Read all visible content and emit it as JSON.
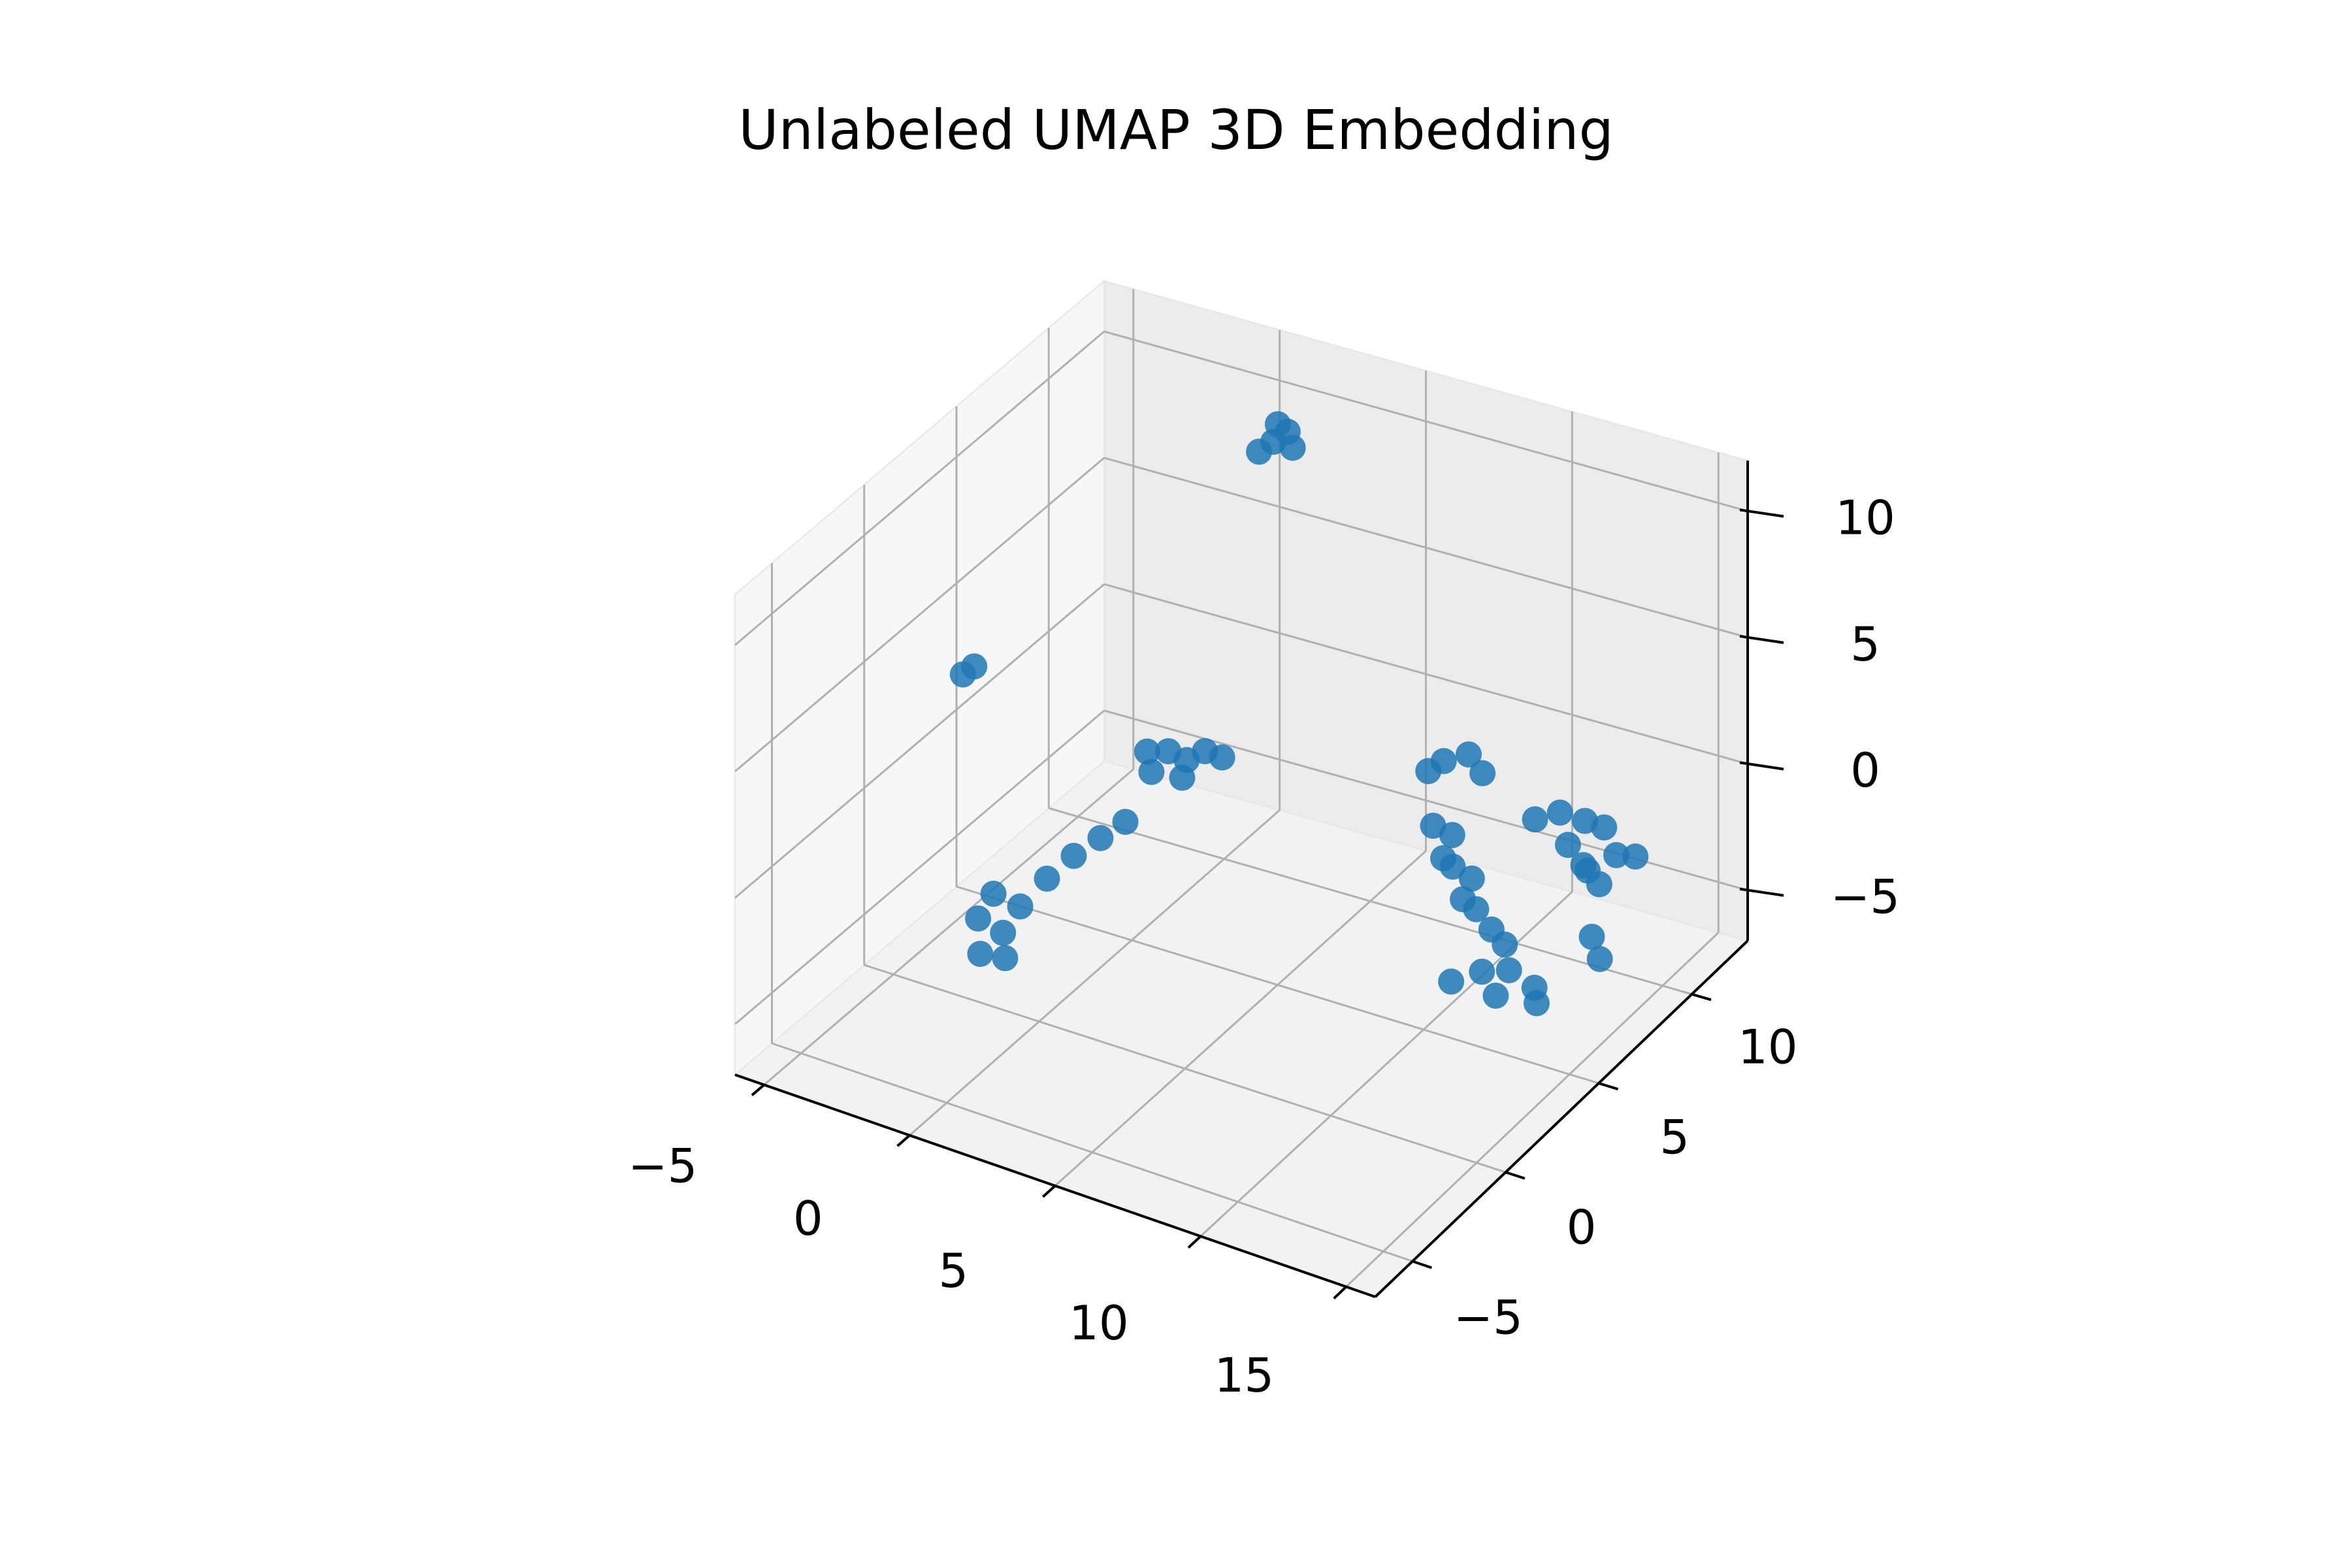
{
  "chart_data": {
    "type": "scatter",
    "projection": "3d",
    "title": "Unlabeled UMAP 3D Embedding",
    "xlabel": "",
    "ylabel": "",
    "zlabel": "",
    "xlim": [
      -6,
      16
    ],
    "ylim": [
      -7,
      13
    ],
    "zlim": [
      -7,
      12
    ],
    "xticks": [
      -5,
      0,
      5,
      10,
      15
    ],
    "yticks": [
      -5,
      0,
      5,
      10
    ],
    "zticks": [
      -5,
      0,
      5,
      10
    ],
    "xtick_labels": [
      "−5",
      "0",
      "5",
      "10",
      "15"
    ],
    "ytick_labels": [
      "−5",
      "0",
      "5",
      "10"
    ],
    "ztick_labels": [
      "−5",
      "0",
      "5",
      "10"
    ],
    "grid": true,
    "legend": "none",
    "color": "#1f77b4",
    "series": [
      {
        "points": [
          [
            2.0,
            9.5,
            10.5
          ],
          [
            2.3,
            9.8,
            10.8
          ],
          [
            1.7,
            9.2,
            10.2
          ],
          [
            2.6,
            9.6,
            10.4
          ],
          [
            1.9,
            9.9,
            10.9
          ],
          [
            -4.2,
            2.5,
            3.6
          ],
          [
            -4.0,
            2.8,
            3.8
          ],
          [
            1.8,
            3.0,
            2.4
          ],
          [
            2.4,
            3.2,
            2.5
          ],
          [
            2.9,
            3.4,
            2.2
          ],
          [
            3.4,
            3.6,
            2.6
          ],
          [
            3.8,
            3.9,
            2.3
          ],
          [
            2.2,
            2.6,
            2.0
          ],
          [
            3.0,
            3.0,
            1.8
          ],
          [
            -2.2,
            1.0,
            -3.4
          ],
          [
            -2.6,
            0.8,
            -4.4
          ],
          [
            -2.0,
            1.2,
            -5.0
          ],
          [
            -1.6,
            1.5,
            -4.0
          ],
          [
            -1.0,
            2.0,
            -3.0
          ],
          [
            -0.4,
            2.5,
            -2.2
          ],
          [
            0.2,
            3.0,
            -1.6
          ],
          [
            0.8,
            3.4,
            -1.0
          ],
          [
            -2.4,
            0.6,
            -5.6
          ],
          [
            -1.8,
            1.0,
            -5.8
          ],
          [
            9.8,
            6.4,
            2.6
          ],
          [
            10.4,
            6.8,
            2.8
          ],
          [
            11.0,
            6.6,
            2.4
          ],
          [
            9.4,
            6.2,
            2.2
          ],
          [
            10.2,
            5.2,
            1.0
          ],
          [
            10.6,
            5.6,
            0.5
          ],
          [
            11.0,
            5.0,
            -0.2
          ],
          [
            11.4,
            5.4,
            -0.8
          ],
          [
            11.8,
            5.0,
            -1.6
          ],
          [
            12.2,
            5.2,
            -2.4
          ],
          [
            11.6,
            4.6,
            -1.0
          ],
          [
            10.8,
            4.8,
            0.2
          ],
          [
            12.4,
            5.6,
            -3.2
          ],
          [
            12.0,
            5.0,
            -4.0
          ],
          [
            11.2,
            4.6,
            -4.4
          ],
          [
            12.6,
            4.8,
            -4.6
          ],
          [
            12.8,
            5.2,
            -3.8
          ],
          [
            12.8,
            6.6,
            1.2
          ],
          [
            13.4,
            7.0,
            1.4
          ],
          [
            14.0,
            7.4,
            1.0
          ],
          [
            14.4,
            7.8,
            0.6
          ],
          [
            13.8,
            6.8,
            0.4
          ],
          [
            14.6,
            6.6,
            -0.2
          ],
          [
            15.2,
            7.2,
            0.2
          ],
          [
            15.6,
            7.6,
            0.0
          ],
          [
            14.2,
            7.0,
            -0.4
          ],
          [
            15.0,
            6.6,
            -0.6
          ],
          [
            15.0,
            6.2,
            -2.4
          ],
          [
            15.4,
            6.0,
            -3.0
          ],
          [
            13.8,
            5.0,
            -4.0
          ],
          [
            14.0,
            4.8,
            -4.4
          ]
        ]
      }
    ]
  }
}
